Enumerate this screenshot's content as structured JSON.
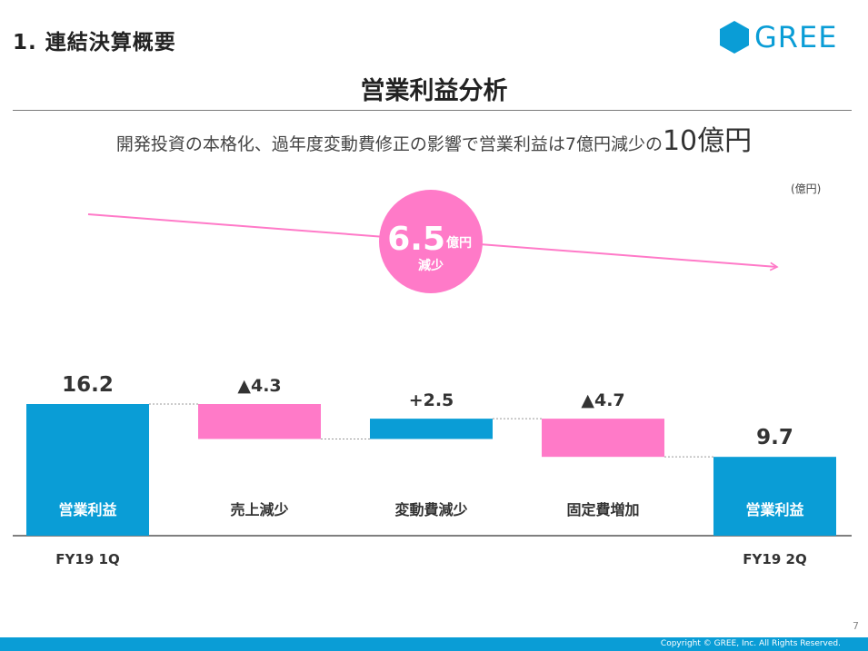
{
  "header": {
    "section_title": "1. 連結決算概要",
    "logo_text": "GREE",
    "brand_color": "#0a9dd6"
  },
  "title": "営業利益分析",
  "subtitle": {
    "text": "開発投資の本格化、過年度変動費修正の影響で営業利益は7億円減少の",
    "value": "10億円"
  },
  "chart_data": {
    "type": "bar",
    "subtype": "waterfall",
    "unit": "(億円)",
    "categories": [
      "営業利益",
      "売上減少",
      "変動費減少",
      "固定費増加",
      "営業利益"
    ],
    "period_labels": [
      "FY19 1Q",
      "",
      "",
      "",
      "FY19 2Q"
    ],
    "values": [
      16.2,
      -4.3,
      2.5,
      -4.7,
      9.7
    ],
    "value_labels": [
      "16.2",
      "▲4.3",
      "+2.5",
      "▲4.7",
      "9.7"
    ],
    "bar_kinds": [
      "total",
      "delta",
      "delta",
      "delta",
      "total"
    ],
    "colors": {
      "total": "#0a9dd6",
      "increase": "#0a9dd6",
      "decrease": "#ff7ac8",
      "connector": "#999999",
      "trend_arrow": "#ff7ac8"
    },
    "ylim": [
      0,
      16.2
    ],
    "callout": {
      "value": "6.5",
      "unit": "億円",
      "label": "減少",
      "color": "#ff7ac8"
    }
  },
  "footer": {
    "page_number": "7",
    "copyright": "Copyright © GREE, Inc. All Rights Reserved."
  }
}
